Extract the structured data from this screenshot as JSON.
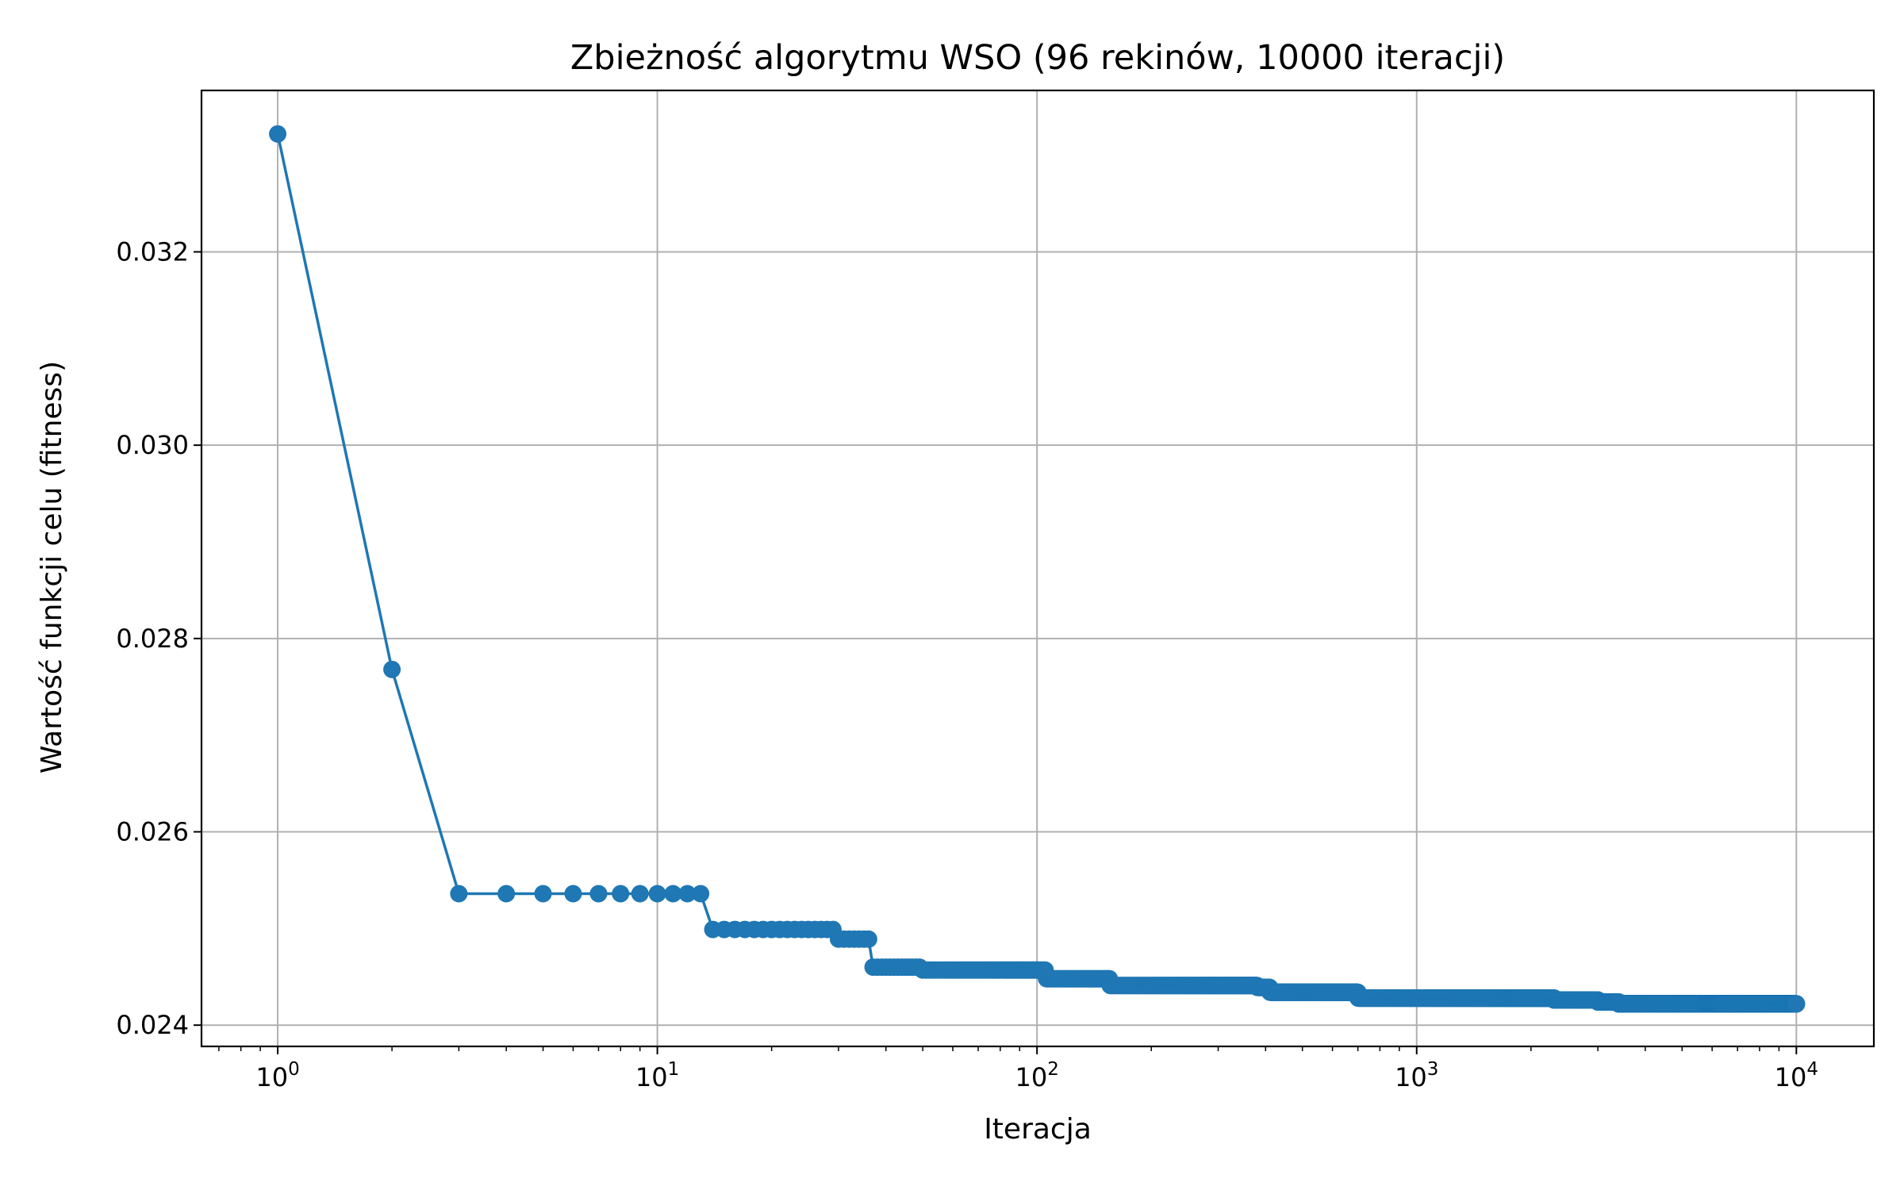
{
  "chart_data": {
    "type": "line",
    "title": "Zbieżność algorytmu WSO (96 rekinów, 10000 iteracji)",
    "xlabel": "Iteracja",
    "ylabel": "Wartość funkcji celu (fitness)",
    "xscale": "log",
    "xlim": [
      0.63,
      16000
    ],
    "ylim": [
      0.02378,
      0.03367
    ],
    "grid": true,
    "legend": "none",
    "color": "#1f77b4",
    "x_ticks": [
      {
        "value": 1,
        "base": "10",
        "exp": "0"
      },
      {
        "value": 10,
        "base": "10",
        "exp": "1"
      },
      {
        "value": 100,
        "base": "10",
        "exp": "2"
      },
      {
        "value": 1000,
        "base": "10",
        "exp": "3"
      },
      {
        "value": 10000,
        "base": "10",
        "exp": "4"
      }
    ],
    "y_ticks": [
      {
        "value": 0.024,
        "label": "0.024"
      },
      {
        "value": 0.026,
        "label": "0.026"
      },
      {
        "value": 0.028,
        "label": "0.028"
      },
      {
        "value": 0.03,
        "label": "0.030"
      },
      {
        "value": 0.032,
        "label": "0.032"
      }
    ],
    "series": [
      {
        "iterations": 10000,
        "segments": [
          {
            "from": 1,
            "to": 1,
            "y": 0.03322
          },
          {
            "from": 2,
            "to": 2,
            "y": 0.02768
          },
          {
            "from": 3,
            "to": 13,
            "y": 0.02536
          },
          {
            "from": 14,
            "to": 29,
            "y": 0.02499
          },
          {
            "from": 30,
            "to": 36,
            "y": 0.02489
          },
          {
            "from": 37,
            "to": 49,
            "y": 0.0246
          },
          {
            "from": 50,
            "to": 105,
            "y": 0.02457
          },
          {
            "from": 106,
            "to": 155,
            "y": 0.02448
          },
          {
            "from": 156,
            "to": 380,
            "y": 0.02441
          },
          {
            "from": 381,
            "to": 410,
            "y": 0.02439
          },
          {
            "from": 411,
            "to": 700,
            "y": 0.02434
          },
          {
            "from": 701,
            "to": 2300,
            "y": 0.02428
          },
          {
            "from": 2301,
            "to": 3000,
            "y": 0.02426
          },
          {
            "from": 3001,
            "to": 3400,
            "y": 0.02424
          },
          {
            "from": 3401,
            "to": 10000,
            "y": 0.02422
          }
        ]
      }
    ]
  }
}
